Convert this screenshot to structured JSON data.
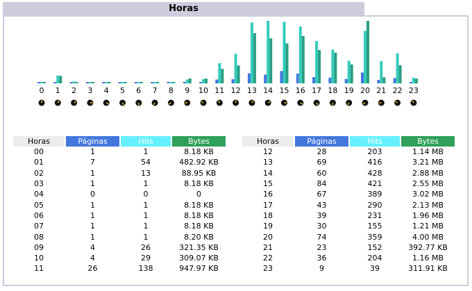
{
  "title": "Horas",
  "headers": {
    "hours": "Horas",
    "pages": "Páginas",
    "hits": "Hits",
    "bytes": "Bytes"
  },
  "colors": {
    "pages": "#4477dd",
    "hits": "#33ccbb",
    "bytes": "#2a9d84",
    "header_bg": "#ccccdd"
  },
  "chart_data": {
    "type": "bar",
    "categories": [
      "0",
      "1",
      "2",
      "3",
      "4",
      "5",
      "6",
      "7",
      "8",
      "9",
      "10",
      "11",
      "12",
      "13",
      "14",
      "15",
      "16",
      "17",
      "18",
      "19",
      "20",
      "21",
      "22",
      "23"
    ],
    "series": [
      {
        "name": "Páginas",
        "values": [
          1,
          7,
          1,
          1,
          0,
          1,
          1,
          1,
          1,
          4,
          4,
          26,
          28,
          69,
          60,
          84,
          67,
          43,
          39,
          30,
          74,
          23,
          36,
          9
        ]
      },
      {
        "name": "Hits",
        "values": [
          1,
          54,
          13,
          1,
          0,
          1,
          1,
          1,
          1,
          26,
          29,
          138,
          203,
          416,
          428,
          421,
          389,
          290,
          231,
          155,
          359,
          152,
          204,
          39
        ]
      },
      {
        "name": "Bytes",
        "values": [
          "8.18 KB",
          "482.92 KB",
          "88.95 KB",
          "8.18 KB",
          "0",
          "8.18 KB",
          "8.18 KB",
          "8.18 KB",
          "8.20 KB",
          "321.35 KB",
          "309.07 KB",
          "947.97 KB",
          "1.14 MB",
          "3.21 MB",
          "2.88 MB",
          "2.55 MB",
          "3.02 MB",
          "2.13 MB",
          "1.96 MB",
          "1.21 MB",
          "4.00 MB",
          "392.77 KB",
          "1.16 MB",
          "311.91 KB"
        ]
      }
    ]
  },
  "rows_left": [
    {
      "hour": "00",
      "pages": "1",
      "hits": "1",
      "bytes": "8.18 KB"
    },
    {
      "hour": "01",
      "pages": "7",
      "hits": "54",
      "bytes": "482.92 KB"
    },
    {
      "hour": "02",
      "pages": "1",
      "hits": "13",
      "bytes": "88.95 KB"
    },
    {
      "hour": "03",
      "pages": "1",
      "hits": "1",
      "bytes": "8.18 KB"
    },
    {
      "hour": "04",
      "pages": "0",
      "hits": "0",
      "bytes": "0"
    },
    {
      "hour": "05",
      "pages": "1",
      "hits": "1",
      "bytes": "8.18 KB"
    },
    {
      "hour": "06",
      "pages": "1",
      "hits": "1",
      "bytes": "8.18 KB"
    },
    {
      "hour": "07",
      "pages": "1",
      "hits": "1",
      "bytes": "8.18 KB"
    },
    {
      "hour": "08",
      "pages": "1",
      "hits": "1",
      "bytes": "8.20 KB"
    },
    {
      "hour": "09",
      "pages": "4",
      "hits": "26",
      "bytes": "321.35 KB"
    },
    {
      "hour": "10",
      "pages": "4",
      "hits": "29",
      "bytes": "309.07 KB"
    },
    {
      "hour": "11",
      "pages": "26",
      "hits": "138",
      "bytes": "947.97 KB"
    }
  ],
  "rows_right": [
    {
      "hour": "12",
      "pages": "28",
      "hits": "203",
      "bytes": "1.14 MB"
    },
    {
      "hour": "13",
      "pages": "69",
      "hits": "416",
      "bytes": "3.21 MB"
    },
    {
      "hour": "14",
      "pages": "60",
      "hits": "428",
      "bytes": "2.88 MB"
    },
    {
      "hour": "15",
      "pages": "84",
      "hits": "421",
      "bytes": "2.55 MB"
    },
    {
      "hour": "16",
      "pages": "67",
      "hits": "389",
      "bytes": "3.02 MB"
    },
    {
      "hour": "17",
      "pages": "43",
      "hits": "290",
      "bytes": "2.13 MB"
    },
    {
      "hour": "18",
      "pages": "39",
      "hits": "231",
      "bytes": "1.96 MB"
    },
    {
      "hour": "19",
      "pages": "30",
      "hits": "155",
      "bytes": "1.21 MB"
    },
    {
      "hour": "20",
      "pages": "74",
      "hits": "359",
      "bytes": "4.00 MB"
    },
    {
      "hour": "21",
      "pages": "23",
      "hits": "152",
      "bytes": "392.77 KB"
    },
    {
      "hour": "22",
      "pages": "36",
      "hits": "204",
      "bytes": "1.16 MB"
    },
    {
      "hour": "23",
      "pages": "9",
      "hits": "39",
      "bytes": "311.91 KB"
    }
  ]
}
